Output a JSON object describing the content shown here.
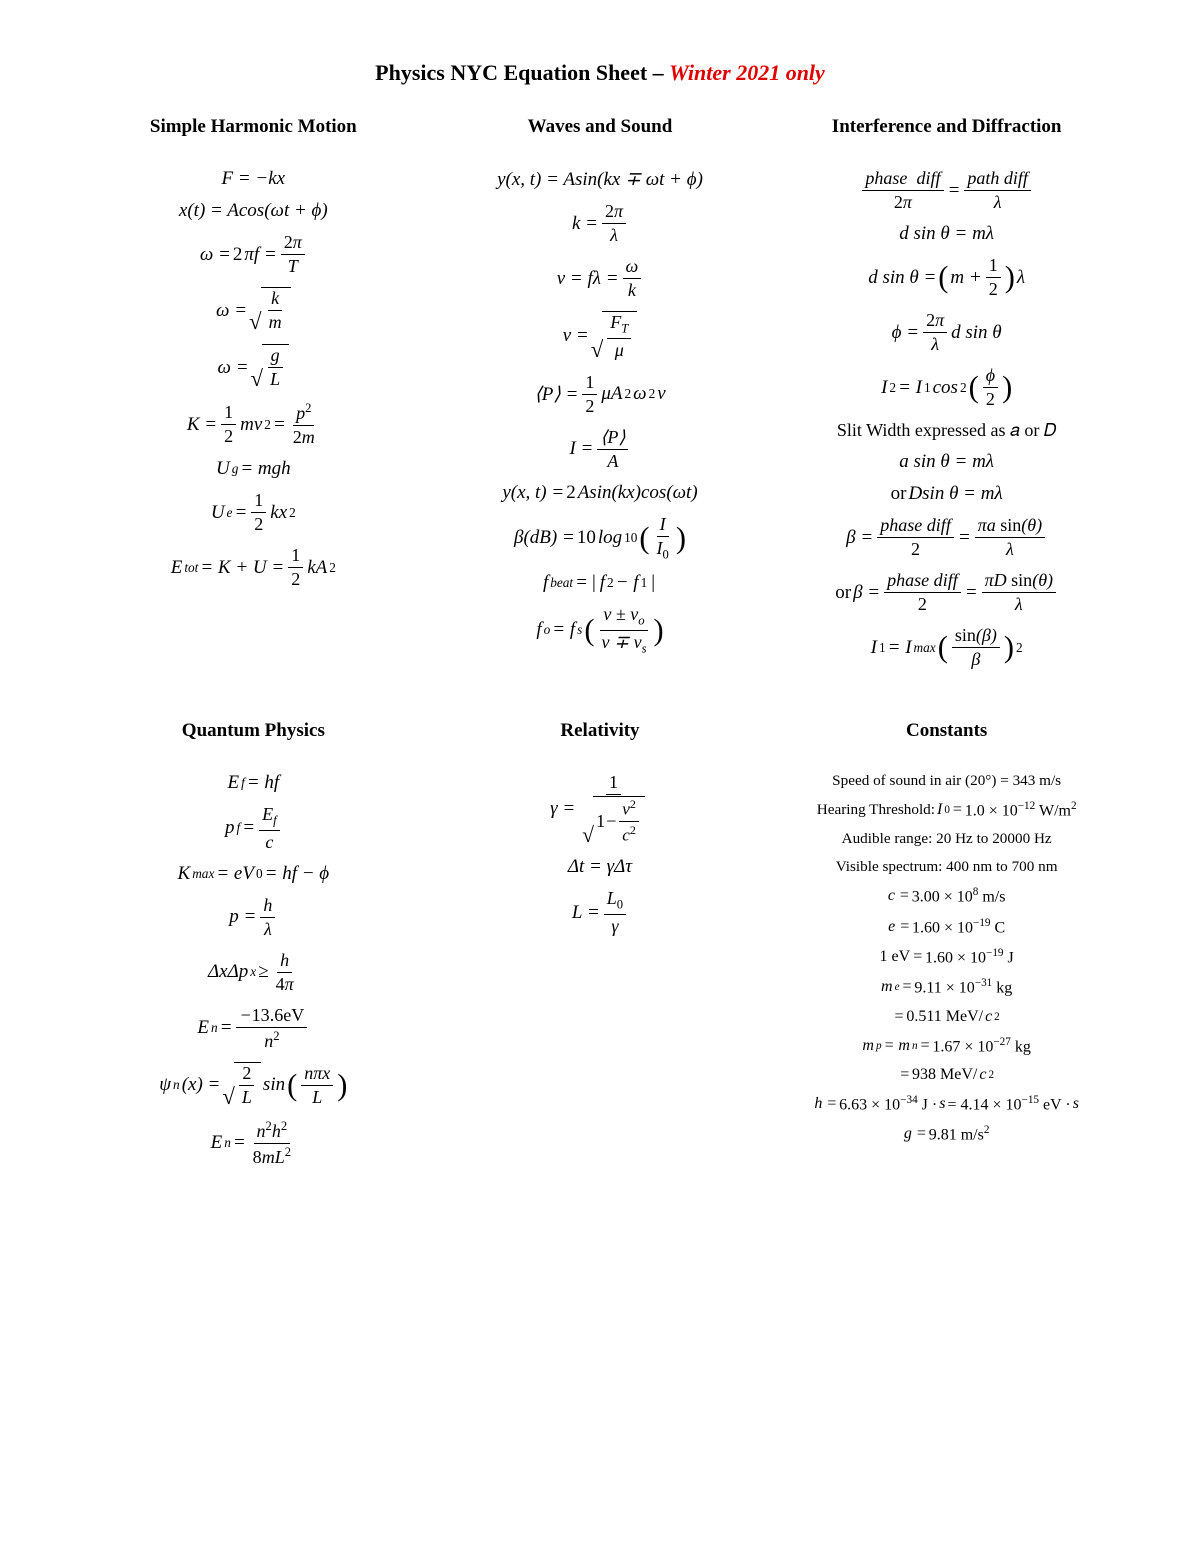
{
  "title_main": "Physics NYC Equation Sheet – ",
  "title_red": "Winter 2021 ",
  "title_red_italic": "only",
  "sections": {
    "shm": {
      "title": "Simple Harmonic Motion"
    },
    "waves": {
      "title": "Waves and Sound"
    },
    "interference": {
      "title": "Interference and Diffraction",
      "slit_note": "Slit Width expressed as 𝑎 or 𝐷"
    },
    "quantum": {
      "title": "Quantum Physics"
    },
    "relativity": {
      "title": "Relativity"
    },
    "constants": {
      "title": "Constants",
      "sound": "Speed of sound in air (20°) = 343 m/s",
      "hearing_pre": "Hearing Threshold: ",
      "hearing_eq": "I₀ = 1.0 × 10⁻¹² W/m²",
      "audible": "Audible range: 20 Hz to 20000 Hz",
      "visible": "Visible spectrum: 400 nm to 700 nm"
    }
  },
  "colors": {
    "red": "#e00000",
    "text": "#000000",
    "bg": "#ffffff"
  },
  "typography": {
    "title_fontsize": 22,
    "section_title_fontsize": 19,
    "equation_fontsize": 19,
    "constants_fontsize": 16
  }
}
